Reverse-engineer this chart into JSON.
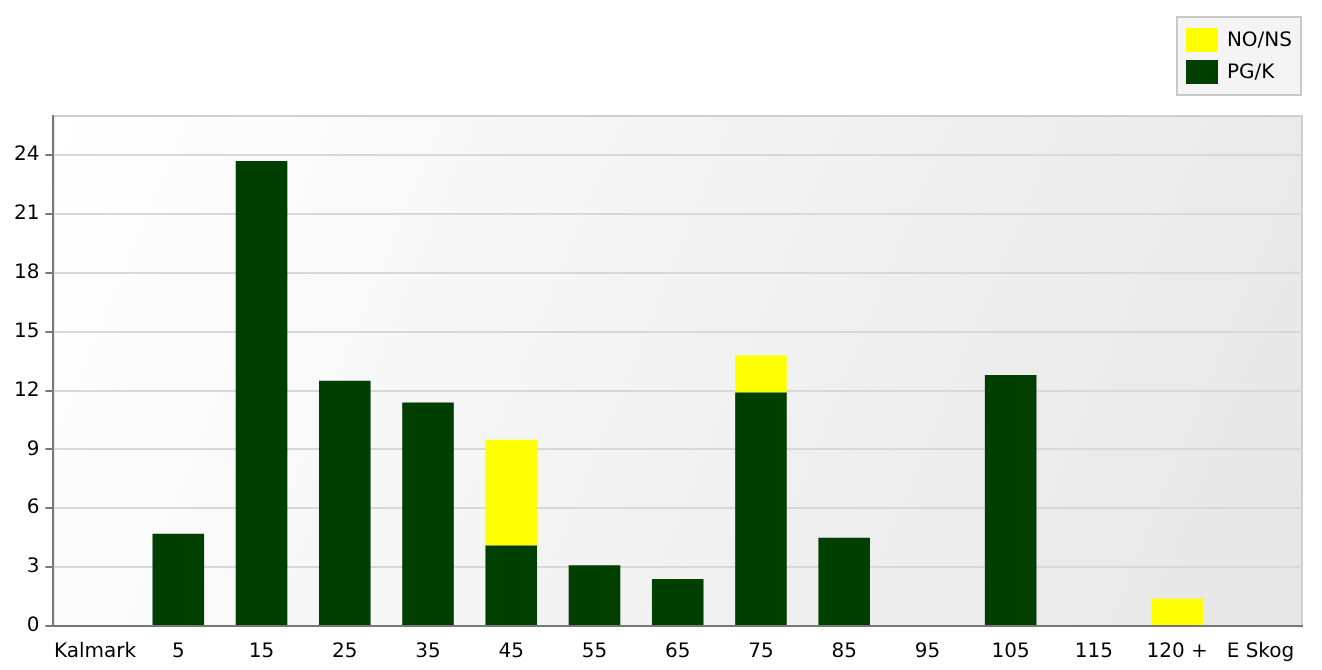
{
  "chart_data": {
    "type": "bar",
    "stacked": true,
    "categories": [
      "Kalmark",
      "5",
      "15",
      "25",
      "35",
      "45",
      "55",
      "65",
      "75",
      "85",
      "95",
      "105",
      "115",
      "120 +",
      "E Skog"
    ],
    "series": [
      {
        "name": "PG/K",
        "color": "#003f00",
        "values": [
          0,
          4.7,
          23.7,
          12.5,
          11.4,
          4.1,
          3.1,
          2.4,
          11.9,
          4.5,
          0,
          12.8,
          0,
          0,
          0
        ]
      },
      {
        "name": "NO/NS",
        "color": "#ffff00",
        "values": [
          0,
          0,
          0,
          0,
          0,
          5.4,
          0,
          0,
          1.9,
          0,
          0,
          0,
          0,
          1.4,
          0
        ]
      }
    ],
    "ylim": [
      0,
      26
    ],
    "yticks": [
      0,
      3,
      6,
      9,
      12,
      15,
      18,
      21,
      24
    ],
    "grid": "y",
    "legend": "top right"
  }
}
